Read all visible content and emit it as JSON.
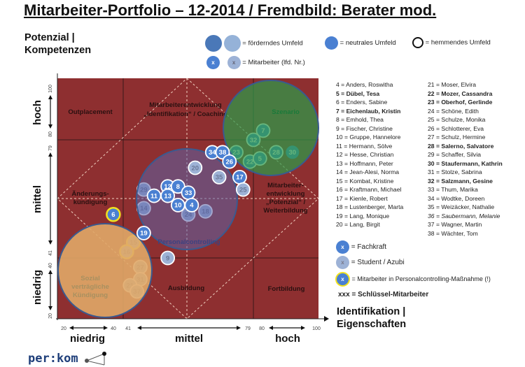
{
  "title": "Mitarbeiter-Portfolio – 12-2014 / Fremdbild: Berater mod.",
  "y_axis": {
    "title_line1": "Potenzial |",
    "title_line2": "Kompetenzen",
    "categories": [
      "hoch",
      "mittel",
      "niedrig"
    ],
    "ticks": [
      "100",
      "80",
      "79",
      "41",
      "40",
      "20"
    ]
  },
  "x_axis": {
    "title_line1": "Identifikation |",
    "title_line2": "Eigenschaften",
    "categories": [
      "niedrig",
      "mittel",
      "hoch"
    ],
    "ticks": [
      "20",
      "40",
      "41",
      "79",
      "80",
      "100"
    ]
  },
  "top_legend": {
    "foerderndes": "= förderndes  Umfeld",
    "neutrales": "= neutrales  Umfeld",
    "hemmendes": "= hemmendes  Umfeld",
    "mitarbeiter": "= Mitarbeiter  (lfd. Nr.)",
    "x": "x"
  },
  "zones": {
    "outplacement": "Outplacement",
    "me_ident_1": "Mitarbeiterentwicklung",
    "me_ident_2": "„Identifikation“ / Coaching",
    "szenario": "Szenario",
    "aenderung_1": "Änderungs-",
    "aenderung_2": "kündigung",
    "personalcontrolling": "Personalcontrolling",
    "me_pot_1": "Mitarbeiter-",
    "me_pot_2": "entwicklung",
    "me_pot_3": "„Potenzial“ /",
    "me_pot_4": "Weiterbildung",
    "sozial_1": "Sozial",
    "sozial_2": "verträgliche",
    "sozial_3": "Kündigung",
    "ausbildung": "Ausbildung",
    "fortbildung": "Fortbildung"
  },
  "colors": {
    "background": "#8e2f30",
    "fachkraft": "#4a80d2",
    "student": "#9db2d6",
    "green": "#2e9a4a",
    "purple": "#5b63a8",
    "orange": "#e0a868",
    "yellow": "#f2e21e"
  },
  "employees_list": {
    "left": [
      {
        "t": "4  = Anders, Roswitha"
      },
      {
        "t": "5  = Dübel, Tesa",
        "key": true
      },
      {
        "t": "6  = Enders, Sabine"
      },
      {
        "t": "7  = Eichenlaub,  Kristin",
        "key": true
      },
      {
        "t": "8  = Emhold, Thea"
      },
      {
        "t": "9  = Fischer, Christine"
      },
      {
        "t": "10 = Gruppe, Hannelore"
      },
      {
        "t": "11 = Hermann, Sölve"
      },
      {
        "t": "12 = Hesse, Christian"
      },
      {
        "t": "13 = Hoffmann, Peter"
      },
      {
        "t": "14 = Jean-Alesi, Norma"
      },
      {
        "t": "15 = Kombat, Kristine"
      },
      {
        "t": "16 = Kraftmann, Michael"
      },
      {
        "t": "17 = Kienle, Robert"
      },
      {
        "t": "18 = Lustenberger,  Marta"
      },
      {
        "t": "19 = Lang, Monique"
      },
      {
        "t": "20 = Lang, Birgit"
      }
    ],
    "right": [
      {
        "t": "21 = Moser, Elvira"
      },
      {
        "t": "22 = Mozer, Cassandra",
        "key": true
      },
      {
        "t": "23 = Oberhof, Gerlinde",
        "key": true
      },
      {
        "t": "24 = Schöne, Edith"
      },
      {
        "t": "25 = Schulze, Monika"
      },
      {
        "t": "26 = Schlotterer, Eva"
      },
      {
        "t": "27 = Schulz, Hermine"
      },
      {
        "t": "28 = Salerno, Salvatore",
        "key": true
      },
      {
        "t": "29 = Schaffer, Silvia"
      },
      {
        "t": "30 = Staufermann, Kathrin",
        "key": true
      },
      {
        "t": "31 = Stolze, Sabrina"
      },
      {
        "t": "32 = Salzmann,  Gesine",
        "key": true
      },
      {
        "t": "33 = Thum, Marika"
      },
      {
        "t": "34 = Wodtke, Doreen"
      },
      {
        "t": "35 = Weizäcker, Nathalie"
      },
      {
        "t": "36 = Saubermann, Melanie",
        "italic": true
      },
      {
        "t": "37 = Wagner, Martin"
      },
      {
        "t": "38 = Wächter, Tom"
      }
    ]
  },
  "bottom_legend": {
    "fachkraft": "= Fachkraft",
    "student": "= Student  / Azubi",
    "massnahme": "= Mitarbeiter  in Personalcontrolling-Maßnahme  (!)",
    "key_sym": "xxx",
    "key": "= Schlüssel-Mitarbeiter"
  },
  "logo": "per:kom",
  "chart_data": {
    "type": "scatter",
    "xlabel": "Identifikation | Eigenschaften",
    "ylabel": "Potenzial | Kompetenzen",
    "xlim": [
      20,
      100
    ],
    "ylim": [
      20,
      100
    ],
    "points": [
      {
        "id": "7",
        "x": 83,
        "y": 83,
        "kind": "fachkraft"
      },
      {
        "id": "32",
        "x": 80,
        "y": 80,
        "kind": "fachkraft"
      },
      {
        "id": "23",
        "x": 74,
        "y": 75,
        "kind": "fachkraft"
      },
      {
        "id": "22",
        "x": 78,
        "y": 72,
        "kind": "fachkraft"
      },
      {
        "id": "5",
        "x": 82,
        "y": 73,
        "kind": "fachkraft"
      },
      {
        "id": "28",
        "x": 87,
        "y": 75,
        "kind": "fachkraft"
      },
      {
        "id": "30",
        "x": 92,
        "y": 75,
        "kind": "fachkraft",
        "noborder": true
      },
      {
        "id": "34",
        "x": 67,
        "y": 75,
        "kind": "fachkraft"
      },
      {
        "id": "38",
        "x": 70,
        "y": 75,
        "kind": "fachkraft"
      },
      {
        "id": "26",
        "x": 72,
        "y": 72,
        "kind": "fachkraft"
      },
      {
        "id": "20",
        "x": 62,
        "y": 70,
        "kind": "student"
      },
      {
        "id": "35",
        "x": 69,
        "y": 67,
        "kind": "student"
      },
      {
        "id": "17",
        "x": 75,
        "y": 67,
        "kind": "fachkraft"
      },
      {
        "id": "25",
        "x": 76,
        "y": 63,
        "kind": "student"
      },
      {
        "id": "29",
        "x": 47,
        "y": 63,
        "kind": "student"
      },
      {
        "id": "14",
        "x": 47,
        "y": 57,
        "kind": "student"
      },
      {
        "id": "18",
        "x": 65,
        "y": 56,
        "kind": "student"
      },
      {
        "id": "24",
        "x": 60,
        "y": 55,
        "kind": "student"
      },
      {
        "id": "12",
        "x": 54,
        "y": 64,
        "kind": "fachkraft"
      },
      {
        "id": "8",
        "x": 57,
        "y": 64,
        "kind": "fachkraft"
      },
      {
        "id": "33",
        "x": 60,
        "y": 62,
        "kind": "fachkraft"
      },
      {
        "id": "11",
        "x": 50,
        "y": 61,
        "kind": "fachkraft"
      },
      {
        "id": "13",
        "x": 54,
        "y": 61,
        "kind": "fachkraft"
      },
      {
        "id": "10",
        "x": 57,
        "y": 58,
        "kind": "fachkraft"
      },
      {
        "id": "4",
        "x": 61,
        "y": 58,
        "kind": "fachkraft"
      },
      {
        "id": "6",
        "x": 37,
        "y": 55,
        "kind": "fachkraft",
        "massnahme": true
      },
      {
        "id": "19",
        "x": 47,
        "y": 49,
        "kind": "fachkraft"
      },
      {
        "id": "15",
        "x": 44,
        "y": 46,
        "kind": "student",
        "massnahme": true
      },
      {
        "id": "16",
        "x": 42,
        "y": 43,
        "kind": "student",
        "massnahme": true
      },
      {
        "id": "9",
        "x": 54,
        "y": 41,
        "kind": "student"
      },
      {
        "id": "27",
        "x": 46,
        "y": 37,
        "kind": "student"
      },
      {
        "id": "31",
        "x": 46,
        "y": 33,
        "kind": "student"
      },
      {
        "id": "21",
        "x": 43,
        "y": 31,
        "kind": "student"
      },
      {
        "id": "37",
        "x": 45,
        "y": 29,
        "kind": "student"
      }
    ]
  }
}
